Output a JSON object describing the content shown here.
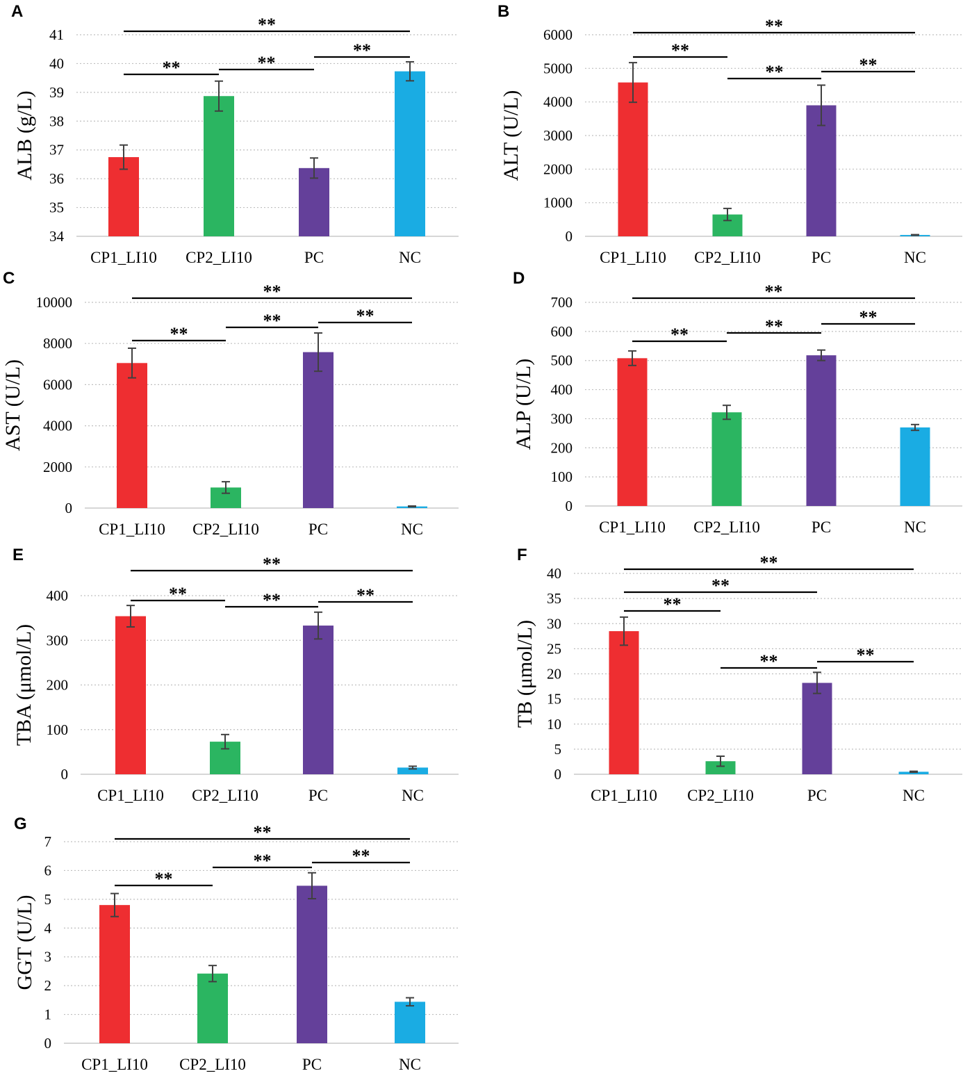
{
  "figure": {
    "colors": {
      "CP1_LI10": "#ee2e31",
      "CP2_LI10": "#2bb561",
      "PC": "#64409a",
      "NC": "#1aace3"
    }
  },
  "chart_data": [
    {
      "panel": "A",
      "type": "bar",
      "ylabel": "ALB (g/L)",
      "categories": [
        "CP1_LI10",
        "CP2_LI10",
        "PC",
        "NC"
      ],
      "values": [
        36.75,
        38.87,
        36.37,
        39.73
      ],
      "errors": [
        0.42,
        0.52,
        0.35,
        0.33
      ],
      "ylim": [
        34,
        41
      ],
      "yticks": [
        34,
        35,
        36,
        37,
        38,
        39,
        40,
        41
      ],
      "significance": [
        {
          "from": 0,
          "to": 3,
          "label": "**"
        },
        {
          "from": 0,
          "to": 1,
          "label": "**"
        },
        {
          "from": 1,
          "to": 2,
          "label": "**"
        },
        {
          "from": 2,
          "to": 3,
          "label": "**"
        }
      ]
    },
    {
      "panel": "B",
      "type": "bar",
      "ylabel": "ALT (U/L)",
      "categories": [
        "CP1_LI10",
        "CP2_LI10",
        "PC",
        "NC"
      ],
      "values": [
        4580,
        650,
        3900,
        40
      ],
      "errors": [
        590,
        180,
        600,
        10
      ],
      "ylim": [
        0,
        6000
      ],
      "yticks": [
        0,
        1000,
        2000,
        3000,
        4000,
        5000,
        6000
      ],
      "significance": [
        {
          "from": 0,
          "to": 3,
          "label": "**"
        },
        {
          "from": 0,
          "to": 1,
          "label": "**"
        },
        {
          "from": 1,
          "to": 2,
          "label": "**"
        },
        {
          "from": 2,
          "to": 3,
          "label": "**"
        }
      ]
    },
    {
      "panel": "C",
      "type": "bar",
      "ylabel": "AST (U/L)",
      "categories": [
        "CP1_LI10",
        "CP2_LI10",
        "PC",
        "NC"
      ],
      "values": [
        7050,
        1000,
        7580,
        80
      ],
      "errors": [
        720,
        280,
        930,
        20
      ],
      "ylim": [
        0,
        10000
      ],
      "yticks": [
        0,
        2000,
        4000,
        6000,
        8000,
        10000
      ],
      "significance": [
        {
          "from": 0,
          "to": 3,
          "label": "**"
        },
        {
          "from": 0,
          "to": 1,
          "label": "**"
        },
        {
          "from": 1,
          "to": 2,
          "label": "**"
        },
        {
          "from": 2,
          "to": 3,
          "label": "**"
        }
      ]
    },
    {
      "panel": "D",
      "type": "bar",
      "ylabel": "ALP (U/L)",
      "categories": [
        "CP1_LI10",
        "CP2_LI10",
        "PC",
        "NC"
      ],
      "values": [
        508,
        322,
        518,
        270
      ],
      "errors": [
        25,
        24,
        18,
        10
      ],
      "ylim": [
        0,
        700
      ],
      "yticks": [
        0,
        100,
        200,
        300,
        400,
        500,
        600,
        700
      ],
      "significance": [
        {
          "from": 0,
          "to": 3,
          "label": "**"
        },
        {
          "from": 0,
          "to": 1,
          "label": "**"
        },
        {
          "from": 1,
          "to": 2,
          "label": "**"
        },
        {
          "from": 2,
          "to": 3,
          "label": "**"
        }
      ]
    },
    {
      "panel": "E",
      "type": "bar",
      "ylabel": "TBA (μmol/L)",
      "categories": [
        "CP1_LI10",
        "CP2_LI10",
        "PC",
        "NC"
      ],
      "values": [
        354,
        73,
        333,
        15
      ],
      "errors": [
        24,
        16,
        30,
        3
      ],
      "ylim": [
        0,
        400
      ],
      "yticks": [
        0,
        100,
        200,
        300,
        400
      ],
      "significance": [
        {
          "from": 0,
          "to": 3,
          "label": "**"
        },
        {
          "from": 0,
          "to": 1,
          "label": "**"
        },
        {
          "from": 1,
          "to": 2,
          "label": "**"
        },
        {
          "from": 2,
          "to": 3,
          "label": "**"
        }
      ]
    },
    {
      "panel": "F",
      "type": "bar",
      "ylabel": "TB (μmol/L)",
      "categories": [
        "CP1_LI10",
        "CP2_LI10",
        "PC",
        "NC"
      ],
      "values": [
        28.5,
        2.6,
        18.2,
        0.5
      ],
      "errors": [
        2.8,
        1.0,
        2.1,
        0.1
      ],
      "ylim": [
        0,
        40
      ],
      "yticks": [
        0,
        5,
        10,
        15,
        20,
        25,
        30,
        35,
        40
      ],
      "significance": [
        {
          "from": 0,
          "to": 3,
          "label": "**"
        },
        {
          "from": 0,
          "to": 2,
          "label": "**"
        },
        {
          "from": 0,
          "to": 1,
          "label": "**"
        },
        {
          "from": 1,
          "to": 2,
          "label": "**"
        },
        {
          "from": 2,
          "to": 3,
          "label": "**"
        }
      ]
    },
    {
      "panel": "G",
      "type": "bar",
      "ylabel": "GGT (U/L)",
      "categories": [
        "CP1_LI10",
        "CP2_LI10",
        "PC",
        "NC"
      ],
      "values": [
        4.8,
        2.42,
        5.47,
        1.44
      ],
      "errors": [
        0.4,
        0.28,
        0.45,
        0.14
      ],
      "ylim": [
        0,
        7
      ],
      "yticks": [
        0,
        1,
        2,
        3,
        4,
        5,
        6,
        7
      ],
      "significance": [
        {
          "from": 0,
          "to": 3,
          "label": "**"
        },
        {
          "from": 0,
          "to": 1,
          "label": "**"
        },
        {
          "from": 1,
          "to": 2,
          "label": "**"
        },
        {
          "from": 2,
          "to": 3,
          "label": "**"
        }
      ]
    }
  ]
}
